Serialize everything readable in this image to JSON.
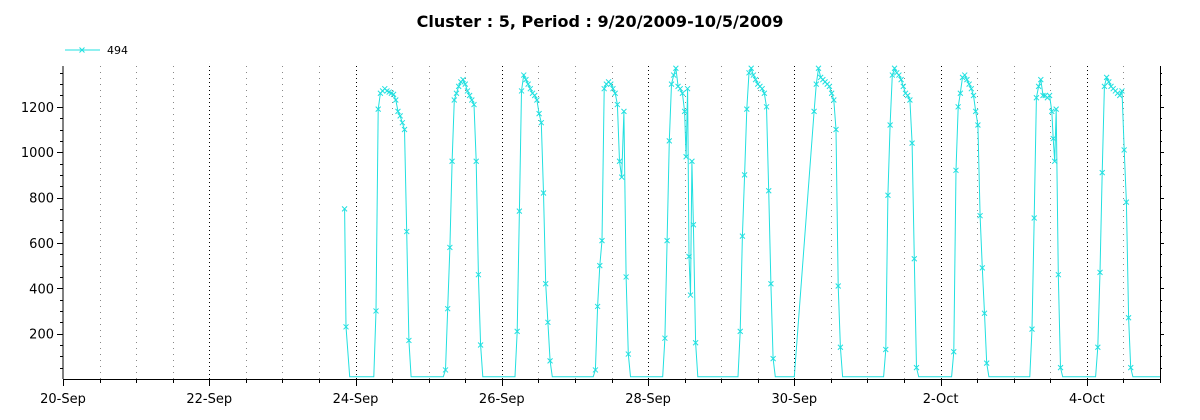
{
  "chart_data": {
    "type": "line",
    "title": "Cluster : 5, Period : 9/20/2009-10/5/2009",
    "xlabel": "",
    "ylabel": "",
    "x_tick_labels": [
      "20-Sep",
      "22-Sep",
      "24-Sep",
      "26-Sep",
      "28-Sep",
      "30-Sep",
      "2-Oct",
      "4-Oct"
    ],
    "x_tick_days": [
      0,
      2,
      4,
      6,
      8,
      10,
      12,
      14
    ],
    "xlim_days": [
      0,
      15
    ],
    "y_ticks": [
      200,
      400,
      600,
      800,
      1000,
      1200
    ],
    "ylim": [
      0,
      1380
    ],
    "grid": true,
    "legend_position": "top-left",
    "series": [
      {
        "name": "494",
        "color": "#22e0e0",
        "marker": "x",
        "points": [
          [
            3.85,
            750
          ],
          [
            3.87,
            230
          ],
          [
            3.92,
            10
          ],
          [
            4.0,
            10
          ],
          [
            4.1,
            10
          ],
          [
            4.2,
            10
          ],
          [
            4.25,
            10
          ],
          [
            4.28,
            300
          ],
          [
            4.31,
            1190
          ],
          [
            4.34,
            1260
          ],
          [
            4.37,
            1270
          ],
          [
            4.4,
            1280
          ],
          [
            4.43,
            1270
          ],
          [
            4.46,
            1265
          ],
          [
            4.49,
            1260
          ],
          [
            4.52,
            1255
          ],
          [
            4.55,
            1230
          ],
          [
            4.58,
            1180
          ],
          [
            4.61,
            1160
          ],
          [
            4.64,
            1130
          ],
          [
            4.67,
            1100
          ],
          [
            4.7,
            650
          ],
          [
            4.73,
            170
          ],
          [
            4.76,
            10
          ],
          [
            4.9,
            10
          ],
          [
            5.1,
            10
          ],
          [
            5.2,
            10
          ],
          [
            5.23,
            40
          ],
          [
            5.26,
            310
          ],
          [
            5.29,
            580
          ],
          [
            5.32,
            960
          ],
          [
            5.35,
            1230
          ],
          [
            5.38,
            1260
          ],
          [
            5.41,
            1290
          ],
          [
            5.44,
            1310
          ],
          [
            5.47,
            1320
          ],
          [
            5.5,
            1300
          ],
          [
            5.53,
            1270
          ],
          [
            5.56,
            1250
          ],
          [
            5.59,
            1230
          ],
          [
            5.62,
            1210
          ],
          [
            5.65,
            960
          ],
          [
            5.68,
            460
          ],
          [
            5.71,
            150
          ],
          [
            5.74,
            10
          ],
          [
            5.9,
            10
          ],
          [
            6.1,
            10
          ],
          [
            6.18,
            10
          ],
          [
            6.21,
            210
          ],
          [
            6.24,
            740
          ],
          [
            6.27,
            1270
          ],
          [
            6.3,
            1340
          ],
          [
            6.33,
            1320
          ],
          [
            6.36,
            1300
          ],
          [
            6.39,
            1280
          ],
          [
            6.42,
            1260
          ],
          [
            6.45,
            1250
          ],
          [
            6.48,
            1230
          ],
          [
            6.51,
            1170
          ],
          [
            6.54,
            1130
          ],
          [
            6.57,
            820
          ],
          [
            6.6,
            420
          ],
          [
            6.63,
            250
          ],
          [
            6.66,
            80
          ],
          [
            6.69,
            10
          ],
          [
            6.9,
            10
          ],
          [
            7.1,
            10
          ],
          [
            7.25,
            10
          ],
          [
            7.28,
            40
          ],
          [
            7.31,
            320
          ],
          [
            7.34,
            500
          ],
          [
            7.37,
            610
          ],
          [
            7.4,
            1280
          ],
          [
            7.43,
            1300
          ],
          [
            7.46,
            1310
          ],
          [
            7.49,
            1300
          ],
          [
            7.52,
            1280
          ],
          [
            7.55,
            1260
          ],
          [
            7.58,
            1210
          ],
          [
            7.61,
            960
          ],
          [
            7.64,
            890
          ],
          [
            7.67,
            1180
          ],
          [
            7.7,
            450
          ],
          [
            7.73,
            110
          ],
          [
            7.76,
            10
          ],
          [
            7.9,
            10
          ],
          [
            8.1,
            10
          ],
          [
            8.2,
            10
          ],
          [
            8.23,
            180
          ],
          [
            8.26,
            610
          ],
          [
            8.29,
            1050
          ],
          [
            8.32,
            1300
          ],
          [
            8.35,
            1340
          ],
          [
            8.38,
            1370
          ],
          [
            8.41,
            1290
          ],
          [
            8.44,
            1280
          ],
          [
            8.47,
            1260
          ],
          [
            8.5,
            1180
          ],
          [
            8.52,
            980
          ],
          [
            8.54,
            1280
          ],
          [
            8.56,
            540
          ],
          [
            8.58,
            370
          ],
          [
            8.6,
            960
          ],
          [
            8.62,
            680
          ],
          [
            8.65,
            160
          ],
          [
            8.68,
            10
          ],
          [
            8.9,
            10
          ],
          [
            9.1,
            10
          ],
          [
            9.23,
            10
          ],
          [
            9.26,
            210
          ],
          [
            9.29,
            630
          ],
          [
            9.32,
            900
          ],
          [
            9.35,
            1190
          ],
          [
            9.38,
            1350
          ],
          [
            9.41,
            1370
          ],
          [
            9.44,
            1340
          ],
          [
            9.47,
            1320
          ],
          [
            9.5,
            1300
          ],
          [
            9.53,
            1290
          ],
          [
            9.56,
            1280
          ],
          [
            9.59,
            1260
          ],
          [
            9.62,
            1200
          ],
          [
            9.65,
            830
          ],
          [
            9.68,
            420
          ],
          [
            9.71,
            90
          ],
          [
            9.74,
            10
          ],
          [
            9.9,
            10
          ],
          [
            10.0,
            10
          ],
          [
            10.27,
            1180
          ],
          [
            10.3,
            1300
          ],
          [
            10.33,
            1370
          ],
          [
            10.36,
            1330
          ],
          [
            10.39,
            1320
          ],
          [
            10.42,
            1310
          ],
          [
            10.45,
            1300
          ],
          [
            10.48,
            1290
          ],
          [
            10.51,
            1260
          ],
          [
            10.54,
            1230
          ],
          [
            10.57,
            1100
          ],
          [
            10.6,
            410
          ],
          [
            10.63,
            140
          ],
          [
            10.66,
            10
          ],
          [
            10.9,
            10
          ],
          [
            11.1,
            10
          ],
          [
            11.22,
            10
          ],
          [
            11.25,
            130
          ],
          [
            11.28,
            810
          ],
          [
            11.31,
            1120
          ],
          [
            11.34,
            1340
          ],
          [
            11.37,
            1370
          ],
          [
            11.4,
            1350
          ],
          [
            11.43,
            1340
          ],
          [
            11.46,
            1320
          ],
          [
            11.49,
            1290
          ],
          [
            11.52,
            1260
          ],
          [
            11.55,
            1250
          ],
          [
            11.58,
            1230
          ],
          [
            11.61,
            1040
          ],
          [
            11.64,
            530
          ],
          [
            11.67,
            50
          ],
          [
            11.7,
            10
          ],
          [
            11.9,
            10
          ],
          [
            12.1,
            10
          ],
          [
            12.15,
            10
          ],
          [
            12.18,
            120
          ],
          [
            12.21,
            920
          ],
          [
            12.24,
            1200
          ],
          [
            12.27,
            1260
          ],
          [
            12.3,
            1330
          ],
          [
            12.33,
            1340
          ],
          [
            12.36,
            1320
          ],
          [
            12.39,
            1300
          ],
          [
            12.42,
            1280
          ],
          [
            12.45,
            1250
          ],
          [
            12.48,
            1180
          ],
          [
            12.51,
            1120
          ],
          [
            12.54,
            720
          ],
          [
            12.57,
            490
          ],
          [
            12.6,
            290
          ],
          [
            12.63,
            70
          ],
          [
            12.66,
            10
          ],
          [
            12.9,
            10
          ],
          [
            13.1,
            10
          ],
          [
            13.22,
            10
          ],
          [
            13.25,
            220
          ],
          [
            13.28,
            710
          ],
          [
            13.31,
            1240
          ],
          [
            13.34,
            1290
          ],
          [
            13.37,
            1320
          ],
          [
            13.4,
            1250
          ],
          [
            13.43,
            1250
          ],
          [
            13.46,
            1240
          ],
          [
            13.49,
            1250
          ],
          [
            13.52,
            1180
          ],
          [
            13.54,
            1060
          ],
          [
            13.56,
            960
          ],
          [
            13.58,
            1190
          ],
          [
            13.61,
            460
          ],
          [
            13.64,
            50
          ],
          [
            13.67,
            10
          ],
          [
            13.9,
            10
          ],
          [
            14.0,
            10
          ],
          [
            14.12,
            10
          ],
          [
            14.15,
            140
          ],
          [
            14.18,
            470
          ],
          [
            14.21,
            910
          ],
          [
            14.24,
            1290
          ],
          [
            14.27,
            1330
          ],
          [
            14.3,
            1310
          ],
          [
            14.33,
            1290
          ],
          [
            14.36,
            1280
          ],
          [
            14.39,
            1270
          ],
          [
            14.42,
            1260
          ],
          [
            14.45,
            1250
          ],
          [
            14.48,
            1270
          ],
          [
            14.51,
            1010
          ],
          [
            14.54,
            780
          ],
          [
            14.57,
            270
          ],
          [
            14.6,
            50
          ],
          [
            14.63,
            10
          ],
          [
            14.8,
            10
          ],
          [
            15.0,
            10
          ]
        ]
      }
    ]
  }
}
